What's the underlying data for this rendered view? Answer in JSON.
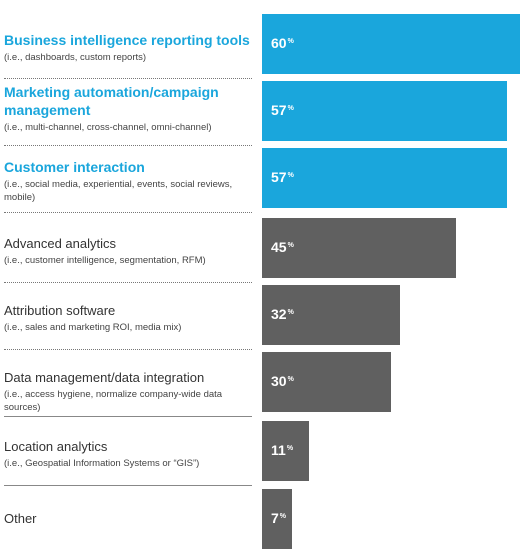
{
  "colors": {
    "highlight": "#1aa6dc",
    "normal": "#606060"
  },
  "chart_data": {
    "type": "bar",
    "orientation": "horizontal",
    "title": "",
    "xlabel": "",
    "ylabel": "",
    "xlim": [
      0,
      60
    ],
    "grid": false,
    "legend": "none",
    "categories": [
      "Business intelligence reporting tools",
      "Marketing automation/campaign management",
      "Customer interaction",
      "Advanced analytics",
      "Attribution software",
      "Data management/data integration",
      "Location analytics",
      "Other"
    ],
    "values": [
      60,
      57,
      57,
      45,
      32,
      30,
      11,
      7
    ],
    "items": [
      {
        "title": "Business intelligence reporting tools",
        "sub": "(i.e., dashboards, custom reports)",
        "value": 60,
        "display": "60",
        "unit": "%",
        "highlight": true
      },
      {
        "title": "Marketing automation/campaign management",
        "sub": "(i.e., multi-channel, cross-channel, omni-channel)",
        "value": 57,
        "display": "57",
        "unit": "%",
        "highlight": true
      },
      {
        "title": "Customer interaction",
        "sub": "(i.e., social media, experiential, events, social reviews, mobile)",
        "value": 57,
        "display": "57",
        "unit": "%",
        "highlight": true
      },
      {
        "title": "Advanced analytics",
        "sub": "(i.e., customer intelligence, segmentation, RFM)",
        "value": 45,
        "display": "45",
        "unit": "%",
        "highlight": false
      },
      {
        "title": "Attribution software",
        "sub": "(i.e., sales and marketing ROI, media mix)",
        "value": 32,
        "display": "32",
        "unit": "%",
        "highlight": false
      },
      {
        "title": "Data management/data integration",
        "sub": "(i.e., access hygiene, normalize company-wide data sources)",
        "value": 30,
        "display": "30",
        "unit": "%",
        "highlight": false
      },
      {
        "title": "Location analytics",
        "sub": "(i.e., Geospatial Information Systems or “GIS”)",
        "value": 11,
        "display": "11",
        "unit": "%",
        "highlight": false
      },
      {
        "title": "Other",
        "sub": "",
        "value": 7,
        "display": "7",
        "unit": "%",
        "highlight": false
      }
    ]
  }
}
